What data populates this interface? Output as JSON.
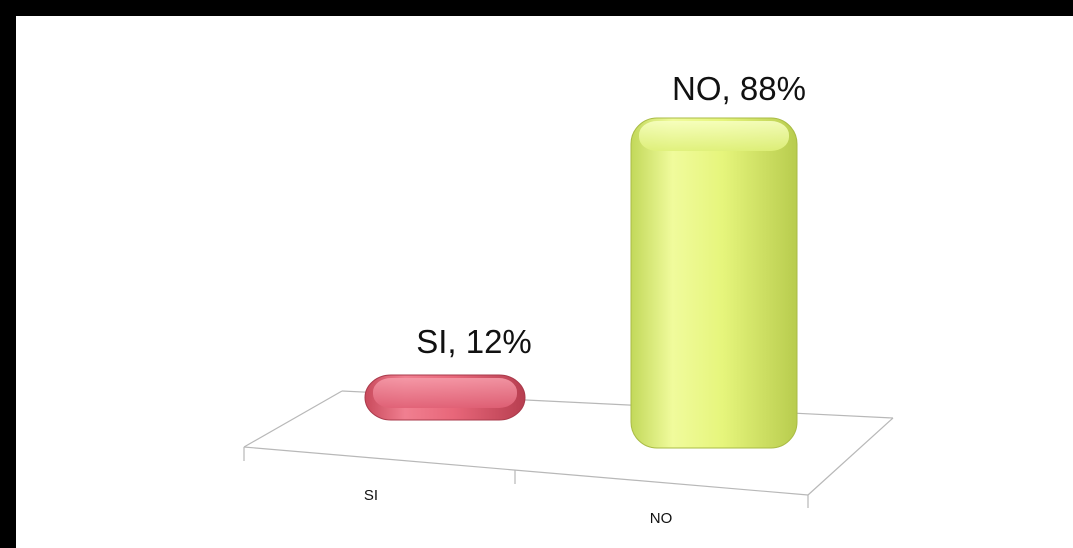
{
  "chart_data": {
    "type": "bar",
    "categories": [
      "SI",
      "NO"
    ],
    "values": [
      12,
      88
    ],
    "data_labels": [
      "SI, 12%",
      "NO, 88%"
    ],
    "unit": "%",
    "style": "3d-rounded-columns",
    "colors": [
      "#e8677a",
      "#e6f57c"
    ],
    "legend": "none",
    "grid": false,
    "ylim": [
      0,
      100
    ]
  }
}
